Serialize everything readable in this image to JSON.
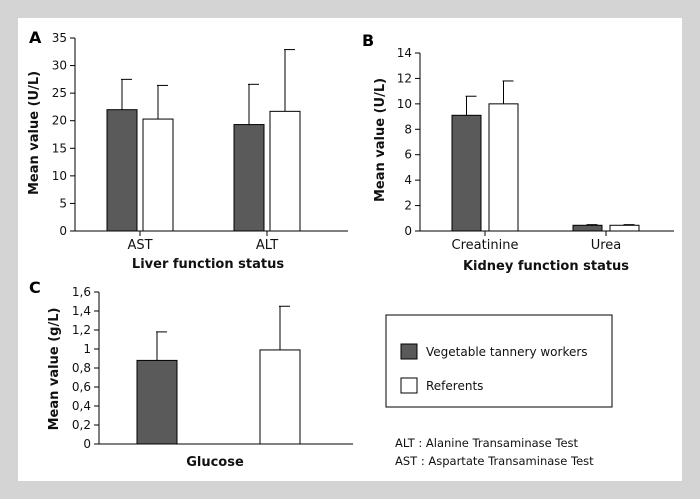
{
  "colors": {
    "workers": "#5a5a5a",
    "referents": "#ffffff",
    "frame_bg": "#d4d4d4"
  },
  "legend": {
    "items": [
      {
        "label": "Vegetable tannery workers",
        "color": "#5a5a5a"
      },
      {
        "label": "Referents",
        "color": "#ffffff"
      }
    ]
  },
  "notes": {
    "alt": "ALT : Alanine Transaminase Test",
    "ast": "AST : Aspartate Transaminase Test"
  },
  "chart_data": [
    {
      "panel": "A",
      "type": "bar",
      "categories": [
        "AST",
        "ALT"
      ],
      "series": [
        {
          "name": "Vegetable tannery workers",
          "values": [
            22,
            19.3
          ],
          "errors": [
            5.5,
            7.3
          ]
        },
        {
          "name": "Referents",
          "values": [
            20.3,
            21.7
          ],
          "errors": [
            6.1,
            11.2
          ]
        }
      ],
      "xlabel": "Liver function status",
      "ylabel": "Mean value (U/L)",
      "ylim": [
        0,
        35
      ],
      "yticks": [
        0,
        5,
        10,
        15,
        20,
        25,
        30,
        35
      ],
      "ytick_labels": [
        "0",
        "5",
        "10",
        "15",
        "20",
        "25",
        "30",
        "35"
      ]
    },
    {
      "panel": "B",
      "type": "bar",
      "categories": [
        "Creatinine",
        "Urea"
      ],
      "series": [
        {
          "name": "Vegetable tannery workers",
          "values": [
            9.1,
            0.45
          ],
          "errors": [
            1.5,
            0.05
          ]
        },
        {
          "name": "Referents",
          "values": [
            10.0,
            0.45
          ],
          "errors": [
            1.8,
            0.05
          ]
        }
      ],
      "xlabel": "Kidney function status",
      "ylabel": "Mean value (U/L)",
      "ylim": [
        0,
        14
      ],
      "yticks": [
        0,
        2,
        4,
        6,
        8,
        10,
        12,
        14
      ],
      "ytick_labels": [
        "0",
        "2",
        "4",
        "6",
        "8",
        "10",
        "12",
        "14"
      ]
    },
    {
      "panel": "C",
      "type": "bar",
      "categories": [
        ""
      ],
      "series": [
        {
          "name": "Vegetable tannery workers",
          "values": [
            0.88
          ],
          "errors": [
            0.3
          ]
        },
        {
          "name": "Referents",
          "values": [
            0.99
          ],
          "errors": [
            0.46
          ]
        }
      ],
      "xlabel": "Glucose",
      "ylabel": "Mean value (g/L)",
      "ylim": [
        0,
        1.6
      ],
      "yticks": [
        0,
        0.2,
        0.4,
        0.6,
        0.8,
        1.0,
        1.2,
        1.4,
        1.6
      ],
      "ytick_labels": [
        "0",
        "0,2",
        "0,4",
        "0,6",
        "0,8",
        "1",
        "1,2",
        "1,4",
        "1,6"
      ]
    }
  ]
}
